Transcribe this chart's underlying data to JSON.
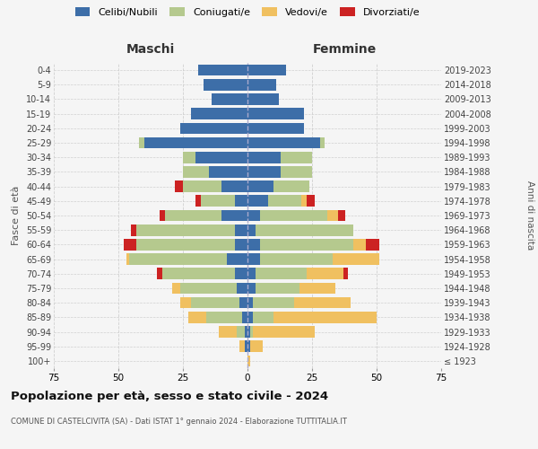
{
  "age_groups": [
    "100+",
    "95-99",
    "90-94",
    "85-89",
    "80-84",
    "75-79",
    "70-74",
    "65-69",
    "60-64",
    "55-59",
    "50-54",
    "45-49",
    "40-44",
    "35-39",
    "30-34",
    "25-29",
    "20-24",
    "15-19",
    "10-14",
    "5-9",
    "0-4"
  ],
  "birth_years": [
    "≤ 1923",
    "1924-1928",
    "1929-1933",
    "1934-1938",
    "1939-1943",
    "1944-1948",
    "1949-1953",
    "1954-1958",
    "1959-1963",
    "1964-1968",
    "1969-1973",
    "1974-1978",
    "1979-1983",
    "1984-1988",
    "1989-1993",
    "1994-1998",
    "1999-2003",
    "2004-2008",
    "2009-2013",
    "2014-2018",
    "2019-2023"
  ],
  "colors": {
    "celibi": "#3d6ea8",
    "coniugati": "#b5c98e",
    "vedovi": "#f0c060",
    "divorziati": "#cc2222"
  },
  "males": {
    "celibi": [
      0,
      1,
      1,
      2,
      3,
      4,
      5,
      8,
      5,
      5,
      10,
      5,
      10,
      15,
      20,
      40,
      26,
      22,
      14,
      17,
      19
    ],
    "coniugati": [
      0,
      0,
      3,
      14,
      19,
      22,
      28,
      38,
      38,
      38,
      22,
      13,
      15,
      10,
      5,
      2,
      0,
      0,
      0,
      0,
      0
    ],
    "vedovi": [
      0,
      2,
      7,
      7,
      4,
      3,
      0,
      1,
      0,
      0,
      0,
      0,
      0,
      0,
      0,
      0,
      0,
      0,
      0,
      0,
      0
    ],
    "divorziati": [
      0,
      0,
      0,
      0,
      0,
      0,
      2,
      0,
      5,
      2,
      2,
      2,
      3,
      0,
      0,
      0,
      0,
      0,
      0,
      0,
      0
    ]
  },
  "females": {
    "nubili": [
      0,
      1,
      1,
      2,
      2,
      3,
      3,
      5,
      5,
      3,
      5,
      8,
      10,
      13,
      13,
      28,
      22,
      22,
      12,
      11,
      15
    ],
    "coniugate": [
      0,
      0,
      1,
      8,
      16,
      17,
      20,
      28,
      36,
      38,
      26,
      13,
      14,
      12,
      12,
      2,
      0,
      0,
      0,
      0,
      0
    ],
    "vedove": [
      1,
      5,
      24,
      40,
      22,
      14,
      14,
      18,
      5,
      0,
      4,
      2,
      0,
      0,
      0,
      0,
      0,
      0,
      0,
      0,
      0
    ],
    "divorziate": [
      0,
      0,
      0,
      0,
      0,
      0,
      2,
      0,
      5,
      0,
      3,
      3,
      0,
      0,
      0,
      0,
      0,
      0,
      0,
      0,
      0
    ]
  },
  "xlim": 75,
  "title": "Popolazione per età, sesso e stato civile - 2024",
  "subtitle": "COMUNE DI CASTELCIVITA (SA) - Dati ISTAT 1° gennaio 2024 - Elaborazione TUTTITALIA.IT",
  "ylabel": "Fasce di età",
  "ylabel_right": "Anni di nascita",
  "xlabel_left": "Maschi",
  "xlabel_right": "Femmine",
  "background_color": "#f5f5f5",
  "grid_color": "#cccccc"
}
